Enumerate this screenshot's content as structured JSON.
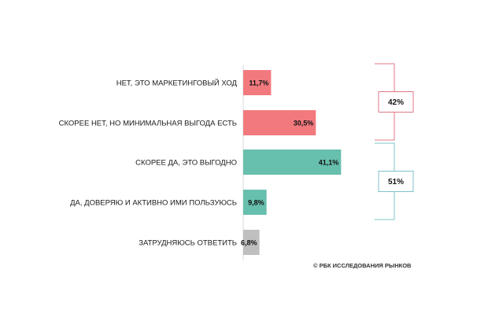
{
  "chart_data": {
    "type": "bar",
    "orientation": "horizontal",
    "title": "",
    "xlabel": "",
    "ylabel": "",
    "xlim": [
      0,
      60
    ],
    "grid": false,
    "legend": "none",
    "categories": [
      "НЕТ, ЭТО МАРКЕТИНГОВЫЙ ХОД",
      "СКОРЕЕ НЕТ, НО МИНИМАЛЬНАЯ ВЫГОДА ЕСТЬ",
      "СКОРЕЕ ДА, ЭТО ВЫГОДНО",
      "ДА, ДОВЕРЯЮ И АКТИВНО ИМИ ПОЛЬЗУЮСЬ",
      "ЗАТРУДНЯЮСЬ ОТВЕТИТЬ"
    ],
    "values": [
      11.7,
      30.5,
      41.1,
      9.8,
      6.8
    ],
    "value_labels": [
      "11,7%",
      "30,5%",
      "41,1%",
      "9,8%",
      "6,8%"
    ],
    "bar_colors": [
      "#f27a7e",
      "#f27a7e",
      "#67bfad",
      "#67bfad",
      "#bfbfbf"
    ],
    "groups": [
      {
        "label": "42%",
        "from": 0,
        "to": 1,
        "color": "#e07a86"
      },
      {
        "label": "51%",
        "from": 2,
        "to": 3,
        "color": "#7cc3c9"
      }
    ]
  },
  "source": "© РБК ИССЛЕДОВАНИЯ РЫНКОВ"
}
